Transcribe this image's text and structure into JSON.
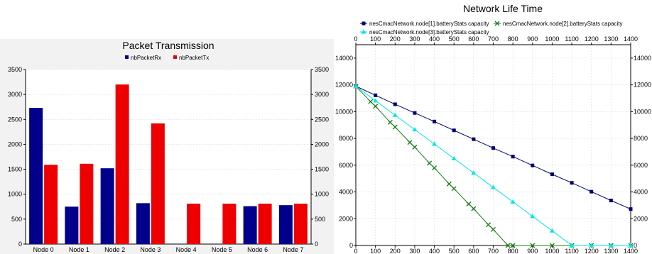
{
  "chart_data": [
    {
      "type": "bar",
      "title": "Packet Transmission",
      "categories": [
        "Node 0",
        "Node 1",
        "Node 2",
        "Node 3",
        "Node 4",
        "Node 5",
        "Node 6",
        "Node 7"
      ],
      "series": [
        {
          "name": "nbPacketRx",
          "color": "#00008b",
          "values": [
            2730,
            750,
            1520,
            820,
            0,
            0,
            760,
            780
          ]
        },
        {
          "name": "nbPacketTx",
          "color": "#ee0000",
          "values": [
            1590,
            1610,
            3200,
            2420,
            810,
            810,
            810,
            810
          ]
        }
      ],
      "ylim": [
        0,
        3500
      ],
      "yticks": [
        0,
        500,
        1000,
        1500,
        2000,
        2500,
        3000,
        3500
      ],
      "legend": "top",
      "grid": true,
      "y_axis_both_sides": true
    },
    {
      "type": "line",
      "title": "Network Life Time",
      "xlim": [
        0,
        1400
      ],
      "ylim": [
        0,
        15000
      ],
      "xticks": [
        0,
        100,
        200,
        300,
        400,
        500,
        600,
        700,
        800,
        900,
        1000,
        1100,
        1200,
        1300,
        1400
      ],
      "yticks": [
        0,
        2000,
        4000,
        6000,
        8000,
        10000,
        12000,
        14000
      ],
      "x_axis_both_sides": true,
      "y_axis_both_sides": true,
      "legend": "top",
      "grid": true,
      "series": [
        {
          "name": "nesCmacNetwork.node[1].batteryStats capacity",
          "color": "#00006e",
          "marker": "square",
          "x": [
            0,
            100,
            200,
            300,
            400,
            500,
            600,
            700,
            800,
            900,
            1000,
            1100,
            1200,
            1300,
            1400
          ],
          "y": [
            11900,
            11220,
            10550,
            9900,
            9260,
            8600,
            7940,
            7280,
            6640,
            5980,
            5320,
            4680,
            4020,
            3360,
            2720
          ]
        },
        {
          "name": "nesCmacNetwork.node[2].batteryStats capacity",
          "color": "#1a7d1a",
          "marker": "x",
          "x": [
            0,
            75,
            100,
            175,
            200,
            275,
            300,
            375,
            400,
            475,
            500,
            575,
            600,
            675,
            700,
            775,
            800,
            900,
            1000,
            1100,
            1200,
            1300,
            1400
          ],
          "y": [
            11900,
            10750,
            10400,
            9200,
            8850,
            7700,
            7350,
            6150,
            5800,
            4600,
            4250,
            3100,
            2750,
            1550,
            1200,
            0,
            0,
            0,
            0,
            0,
            0,
            0,
            0
          ]
        },
        {
          "name": "nesCmacNetwork.node[3].batteryStats capacity",
          "color": "#00e5e5",
          "marker": "triangle",
          "x": [
            0,
            100,
            200,
            300,
            400,
            500,
            600,
            700,
            800,
            900,
            1000,
            1100,
            1200,
            1300,
            1400
          ],
          "y": [
            11900,
            10820,
            9740,
            8660,
            7580,
            6500,
            5420,
            4340,
            3260,
            2180,
            1100,
            0,
            0,
            0,
            0
          ]
        }
      ]
    }
  ]
}
